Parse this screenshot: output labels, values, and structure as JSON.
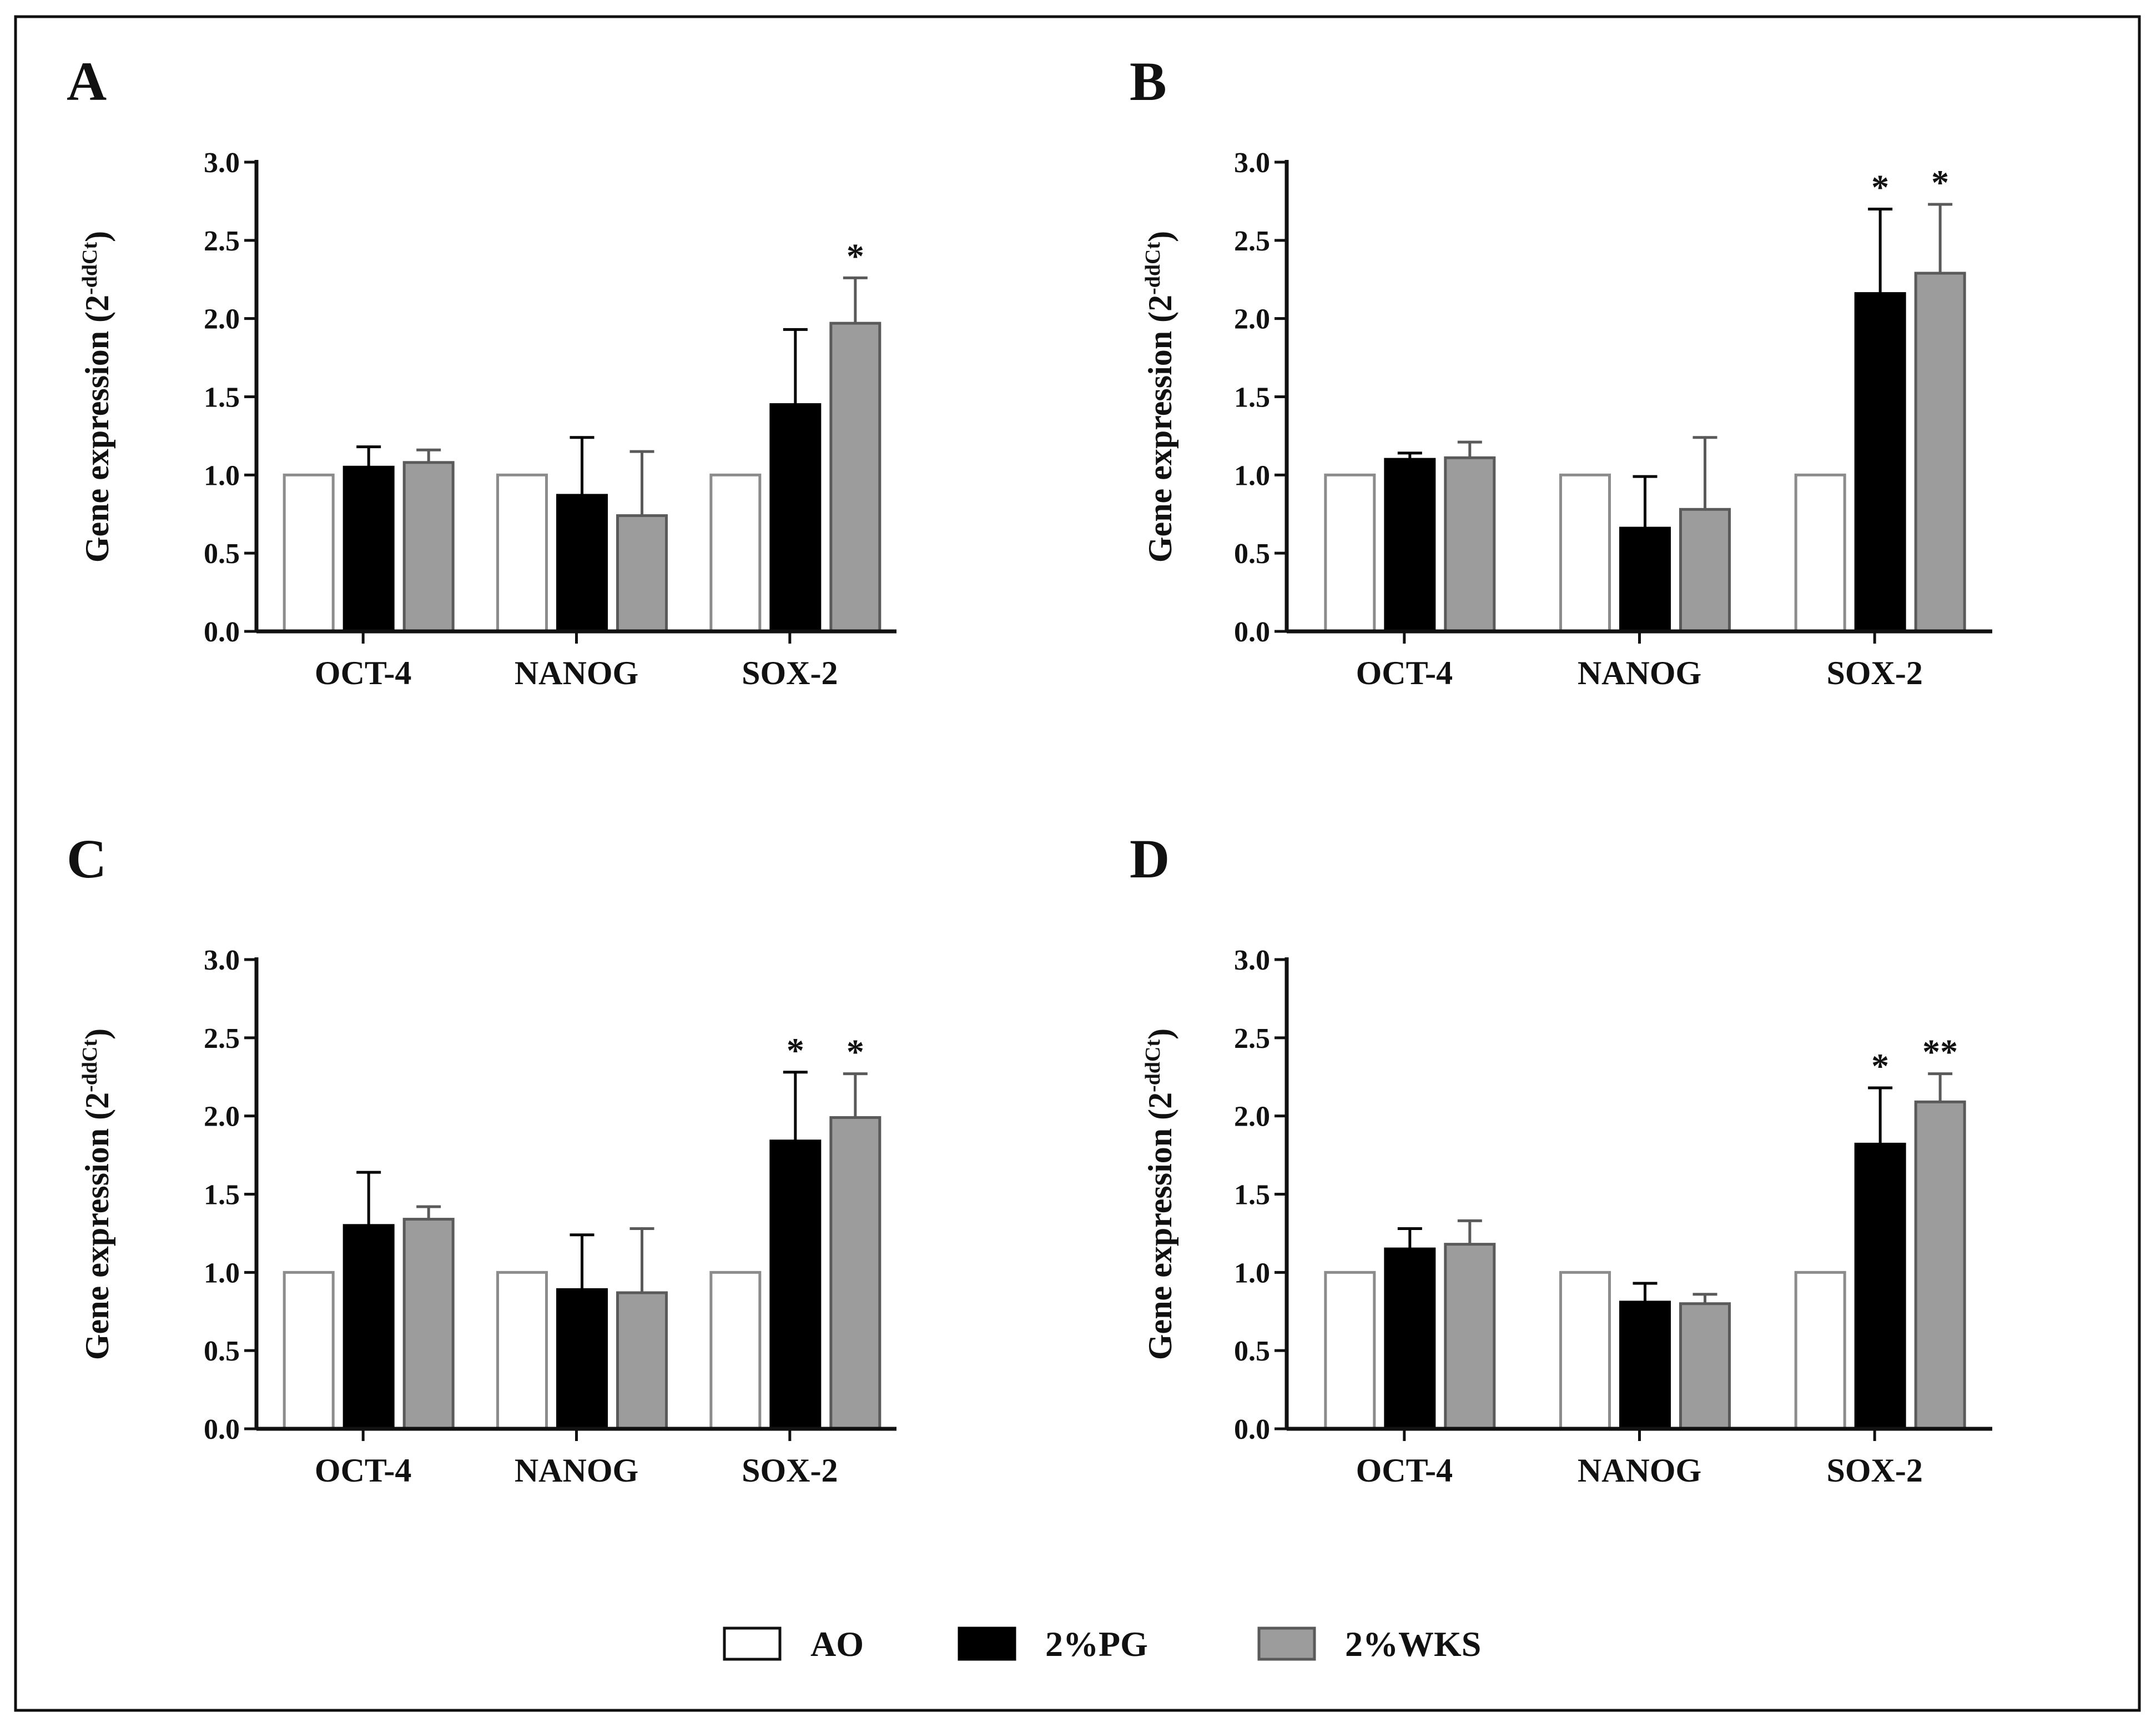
{
  "legend": {
    "entries": [
      {
        "name": "AO",
        "fill": "#ffffff",
        "stroke": "#8c8c8c"
      },
      {
        "name": "2%PG",
        "fill": "#000000",
        "stroke": "#000000"
      },
      {
        "name": "2%WKS",
        "fill": "#9c9c9c",
        "stroke": "#5a5a5a"
      }
    ]
  },
  "chart_data": [
    {
      "type": "bar",
      "panel_label": "A",
      "ylabel": "Gene expression (2",
      "ylabel_superscript": "-ddCt",
      "ylabel_close": ")",
      "ylim": [
        0,
        3.0
      ],
      "yticks": [
        "0.0",
        "0.5",
        "1.0",
        "1.5",
        "2.0",
        "2.5",
        "3.0"
      ],
      "categories": [
        "OCT-4",
        "NANOG",
        "SOX-2"
      ],
      "series": [
        {
          "name": "AO",
          "values": [
            1.0,
            1.0,
            1.0
          ],
          "errors": [
            0,
            0,
            0
          ]
        },
        {
          "name": "2%PG",
          "values": [
            1.05,
            0.87,
            1.45
          ],
          "errors": [
            0.13,
            0.37,
            0.48
          ]
        },
        {
          "name": "2%WKS",
          "values": [
            1.08,
            0.74,
            1.97
          ],
          "errors": [
            0.08,
            0.41,
            0.29
          ]
        }
      ],
      "annotations": [
        {
          "category": 2,
          "series": 2,
          "text": "*"
        }
      ]
    },
    {
      "type": "bar",
      "panel_label": "B",
      "ylabel": "Gene expression (2",
      "ylabel_superscript": "-ddCt",
      "ylabel_close": ")",
      "ylim": [
        0,
        3.0
      ],
      "yticks": [
        "0.0",
        "0.5",
        "1.0",
        "1.5",
        "2.0",
        "2.5",
        "3.0"
      ],
      "categories": [
        "OCT-4",
        "NANOG",
        "SOX-2"
      ],
      "series": [
        {
          "name": "AO",
          "values": [
            1.0,
            1.0,
            1.0
          ],
          "errors": [
            0,
            0,
            0
          ]
        },
        {
          "name": "2%PG",
          "values": [
            1.1,
            0.66,
            2.16
          ],
          "errors": [
            0.04,
            0.33,
            0.54
          ]
        },
        {
          "name": "2%WKS",
          "values": [
            1.11,
            0.78,
            2.29
          ],
          "errors": [
            0.1,
            0.46,
            0.44
          ]
        }
      ],
      "annotations": [
        {
          "category": 2,
          "series": 1,
          "text": "*"
        },
        {
          "category": 2,
          "series": 2,
          "text": "*"
        }
      ]
    },
    {
      "type": "bar",
      "panel_label": "C",
      "ylabel": "Gene expression (2",
      "ylabel_superscript": "-ddCt",
      "ylabel_close": ")",
      "ylim": [
        0,
        3.0
      ],
      "yticks": [
        "0.0",
        "0.5",
        "1.0",
        "1.5",
        "2.0",
        "2.5",
        "3.0"
      ],
      "categories": [
        "OCT-4",
        "NANOG",
        "SOX-2"
      ],
      "series": [
        {
          "name": "AO",
          "values": [
            1.0,
            1.0,
            1.0
          ],
          "errors": [
            0,
            0,
            0
          ]
        },
        {
          "name": "2%PG",
          "values": [
            1.3,
            0.89,
            1.84
          ],
          "errors": [
            0.34,
            0.35,
            0.44
          ]
        },
        {
          "name": "2%WKS",
          "values": [
            1.34,
            0.87,
            1.99
          ],
          "errors": [
            0.08,
            0.41,
            0.28
          ]
        }
      ],
      "annotations": [
        {
          "category": 2,
          "series": 1,
          "text": "*"
        },
        {
          "category": 2,
          "series": 2,
          "text": "*"
        }
      ]
    },
    {
      "type": "bar",
      "panel_label": "D",
      "ylabel": "Gene expression (2",
      "ylabel_superscript": "-ddCt",
      "ylabel_close": ")",
      "ylim": [
        0,
        3.0
      ],
      "yticks": [
        "0.0",
        "0.5",
        "1.0",
        "1.5",
        "2.0",
        "2.5",
        "3.0"
      ],
      "categories": [
        "OCT-4",
        "NANOG",
        "SOX-2"
      ],
      "series": [
        {
          "name": "AO",
          "values": [
            1.0,
            1.0,
            1.0
          ],
          "errors": [
            0,
            0,
            0
          ]
        },
        {
          "name": "2%PG",
          "values": [
            1.15,
            0.81,
            1.82
          ],
          "errors": [
            0.13,
            0.12,
            0.36
          ]
        },
        {
          "name": "2%WKS",
          "values": [
            1.18,
            0.8,
            2.09
          ],
          "errors": [
            0.15,
            0.06,
            0.18
          ]
        }
      ],
      "annotations": [
        {
          "category": 2,
          "series": 1,
          "text": "*"
        },
        {
          "category": 2,
          "series": 2,
          "text": "**"
        }
      ]
    }
  ]
}
